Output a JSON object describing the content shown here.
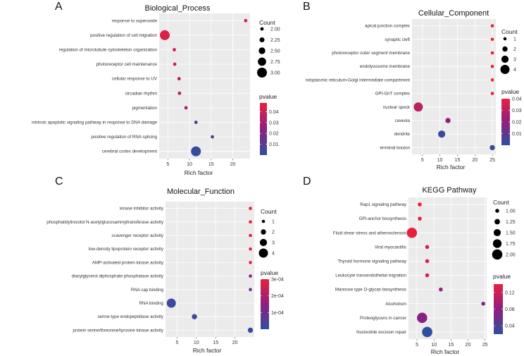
{
  "figure_title": "",
  "chart_data": [
    {
      "type": "scatter",
      "panel": "A",
      "title": "Biological_Process",
      "xlabel": "Rich factor",
      "ylabel": "",
      "xlim": [
        3,
        24
      ],
      "xticks": [
        5,
        10,
        15,
        20
      ],
      "grid": true,
      "categories": [
        "response to superoxide",
        "positive regulation of cell migration",
        "regulation of microtubule cytoskeleton organization",
        "photoreceptor cell maintenance",
        "cellular response to UV",
        "circadian rhythm",
        "pigmentation",
        "intrinsic apoptotic signaling pathway in response to DNA damage",
        "positive regulation of RNA splicing",
        "cerebral cortex development"
      ],
      "points": [
        {
          "term": "response to superoxide",
          "rich_factor": 23,
          "count": 2,
          "pvalue": 0.045
        },
        {
          "term": "positive regulation of cell migration",
          "rich_factor": 4.3,
          "count": 3,
          "pvalue": 0.045
        },
        {
          "term": "regulation of microtubule cytoskeleton organization",
          "rich_factor": 6.5,
          "count": 2,
          "pvalue": 0.042
        },
        {
          "term": "photoreceptor cell maintenance",
          "rich_factor": 6.6,
          "count": 2,
          "pvalue": 0.04
        },
        {
          "term": "cellular response to UV",
          "rich_factor": 7.6,
          "count": 2,
          "pvalue": 0.037
        },
        {
          "term": "circadian rhythm",
          "rich_factor": 7.7,
          "count": 2,
          "pvalue": 0.035
        },
        {
          "term": "pigmentation",
          "rich_factor": 9.2,
          "count": 2,
          "pvalue": 0.03
        },
        {
          "term": "intrinsic apoptotic signaling pathway in response to DNA damage",
          "rich_factor": 11.5,
          "count": 2,
          "pvalue": 0.012
        },
        {
          "term": "positive regulation of RNA splicing",
          "rich_factor": 15.3,
          "count": 2,
          "pvalue": 0.005
        },
        {
          "term": "cerebral cortex development",
          "rich_factor": 11.5,
          "count": 3,
          "pvalue": 0.002
        }
      ],
      "size_legend": {
        "title": "Count",
        "values": [
          2,
          2.25,
          2.5,
          2.75,
          3
        ],
        "labels": [
          "2.00",
          "2.25",
          "2.50",
          "2.75",
          "3.00"
        ]
      },
      "color_legend": {
        "title": "pvalue",
        "min": 0,
        "max": 0.048,
        "ticks": [
          0.01,
          0.02,
          0.03,
          0.04
        ],
        "labels": [
          "0.01",
          "0.02",
          "0.03",
          "0.04"
        ]
      }
    },
    {
      "type": "scatter",
      "panel": "B",
      "title": "Cellular_Component",
      "xlabel": "Rich factor",
      "ylabel": "",
      "xlim": [
        2,
        26
      ],
      "xticks": [
        5,
        10,
        15,
        20,
        25
      ],
      "grid": true,
      "categories": [
        "apical junction complex",
        "synaptic cleft",
        "photoreceptor outer segment membrane",
        "endolysosome membrane",
        "ndoplasmic reticulum-Golgi intermediate compartment",
        "GPI-GnT complex",
        "nuclear speck",
        "caveola",
        "dendrite",
        "terminal bouton"
      ],
      "points": [
        {
          "term": "apical junction complex",
          "rich_factor": 25,
          "count": 1,
          "pvalue": 0.04
        },
        {
          "term": "synaptic cleft",
          "rich_factor": 25,
          "count": 1,
          "pvalue": 0.04
        },
        {
          "term": "photoreceptor outer segment membrane",
          "rich_factor": 25,
          "count": 1,
          "pvalue": 0.04
        },
        {
          "term": "endolysosome membrane",
          "rich_factor": 25,
          "count": 1,
          "pvalue": 0.04
        },
        {
          "term": "ndoplasmic reticulum-Golgi intermediate compartment",
          "rich_factor": 25,
          "count": 1,
          "pvalue": 0.04
        },
        {
          "term": "GPI-GnT complex",
          "rich_factor": 25,
          "count": 1,
          "pvalue": 0.04
        },
        {
          "term": "nuclear speck",
          "rich_factor": 3.8,
          "count": 4,
          "pvalue": 0.03
        },
        {
          "term": "caveola",
          "rich_factor": 12.3,
          "count": 2,
          "pvalue": 0.02
        },
        {
          "term": "dendrite",
          "rich_factor": 10.5,
          "count": 3,
          "pvalue": 0.002
        },
        {
          "term": "terminal bouton",
          "rich_factor": 25,
          "count": 2,
          "pvalue": 0.002
        }
      ],
      "size_legend": {
        "title": "Count",
        "values": [
          1,
          2,
          3,
          4
        ],
        "labels": [
          "1",
          "2",
          "3",
          "4"
        ]
      },
      "color_legend": {
        "title": "pvalue",
        "min": 0,
        "max": 0.04,
        "ticks": [
          0.01,
          0.02,
          0.03,
          0.04
        ],
        "labels": [
          "0.01",
          "0.02",
          "0.03",
          "0.04"
        ]
      }
    },
    {
      "type": "scatter",
      "panel": "C",
      "title": "Molecular_Function",
      "xlabel": "Rich factor",
      "ylabel": "",
      "xlim": [
        2,
        25
      ],
      "xticks": [
        5,
        10,
        15,
        20
      ],
      "grid": true,
      "categories": [
        "kinase inhibitor activity",
        "phosphatidylinositol N-acetylglucosaminyltransferase activity",
        "scavenger receptor activity",
        "low-density lipoprotein receptor activity",
        "AMP-activated protein kinase activity",
        "diacylglycerol diphosphate phosphatase activity",
        "RNA cap binding",
        "RNA binding",
        "serine-type endopeptidase activity",
        "protein serine/threonine/tyrosine kinase activity"
      ],
      "points": [
        {
          "term": "kinase inhibitor activity",
          "rich_factor": 24,
          "count": 1,
          "pvalue": 0.0003
        },
        {
          "term": "phosphatidylinositol N-acetylglucosaminyltransferase activity",
          "rich_factor": 24,
          "count": 1,
          "pvalue": 0.0003
        },
        {
          "term": "scavenger receptor activity",
          "rich_factor": 24,
          "count": 1,
          "pvalue": 0.0003
        },
        {
          "term": "low-density lipoprotein receptor activity",
          "rich_factor": 24,
          "count": 1,
          "pvalue": 0.0003
        },
        {
          "term": "AMP-activated protein kinase activity",
          "rich_factor": 24,
          "count": 1,
          "pvalue": 0.0003
        },
        {
          "term": "diacylglycerol diphosphate phosphatase activity",
          "rich_factor": 24,
          "count": 1,
          "pvalue": 0.00015
        },
        {
          "term": "RNA cap binding",
          "rich_factor": 24,
          "count": 1,
          "pvalue": 0.0001
        },
        {
          "term": "RNA binding",
          "rich_factor": 3.5,
          "count": 4,
          "pvalue": 2e-05
        },
        {
          "term": "serine-type endopeptidase activity",
          "rich_factor": 9.5,
          "count": 2,
          "pvalue": 2e-05
        },
        {
          "term": "protein serine/threonine/tyrosine kinase activity",
          "rich_factor": 24,
          "count": 2,
          "pvalue": 2e-05
        }
      ],
      "size_legend": {
        "title": "Count",
        "values": [
          1,
          2,
          3,
          4
        ],
        "labels": [
          "1",
          "2",
          "3",
          "4"
        ]
      },
      "color_legend": {
        "title": "pvalue",
        "min": 0,
        "max": 0.0003,
        "ticks": [
          0.0001,
          0.0002,
          0.0003
        ],
        "labels": [
          "1e-04",
          "2e-04",
          "3e-04"
        ]
      }
    },
    {
      "type": "scatter",
      "panel": "D",
      "title": "KEGG Pathway",
      "xlabel": "Rich factor",
      "ylabel": "",
      "xlim": [
        2.5,
        25.5
      ],
      "xticks": [
        5,
        10,
        15,
        20,
        25
      ],
      "grid": true,
      "categories": [
        "Rap1 signaling pathway",
        "GPI-anchor biosynthesis",
        "Fluid shear stress and atherosclerosis",
        "Viral myocarditis",
        "Thyroid hormone signaling pathway",
        "Leukocyte transendothelial migration",
        "Mannose type O-glycan biosynthesis",
        "Alcoholism",
        "Proteoglycans in cancer",
        "Nucleotide excision repair"
      ],
      "points": [
        {
          "term": "Rap1 signaling pathway",
          "rich_factor": 5.8,
          "count": 1,
          "pvalue": 0.14
        },
        {
          "term": "GPI-anchor biosynthesis",
          "rich_factor": 5.8,
          "count": 1,
          "pvalue": 0.14
        },
        {
          "term": "Fluid shear stress and atherosclerosis",
          "rich_factor": 3.5,
          "count": 2,
          "pvalue": 0.14
        },
        {
          "term": "Viral myocarditis",
          "rich_factor": 8,
          "count": 1,
          "pvalue": 0.13
        },
        {
          "term": "Thyroid hormone signaling pathway",
          "rich_factor": 8,
          "count": 1,
          "pvalue": 0.13
        },
        {
          "term": "Leukocyte transendothelial migration",
          "rich_factor": 8,
          "count": 1,
          "pvalue": 0.13
        },
        {
          "term": "Mannose type O-glycan biosynthesis",
          "rich_factor": 12,
          "count": 1,
          "pvalue": 0.09
        },
        {
          "term": "Alcoholism",
          "rich_factor": 24.5,
          "count": 1,
          "pvalue": 0.07
        },
        {
          "term": "Proteoglycans in cancer",
          "rich_factor": 6.5,
          "count": 2,
          "pvalue": 0.075
        },
        {
          "term": "Nucleotide excision repair",
          "rich_factor": 8,
          "count": 2,
          "pvalue": 0.02
        }
      ],
      "size_legend": {
        "title": "Count",
        "values": [
          1,
          1.25,
          1.5,
          1.75,
          2
        ],
        "labels": [
          "1.00",
          "1.25",
          "1.50",
          "1.75",
          "2.00"
        ]
      },
      "color_legend": {
        "title": "pvalue",
        "min": 0.02,
        "max": 0.14,
        "ticks": [
          0.04,
          0.08,
          0.12
        ],
        "labels": [
          "0.04",
          "0.08",
          "0.12"
        ]
      }
    }
  ]
}
